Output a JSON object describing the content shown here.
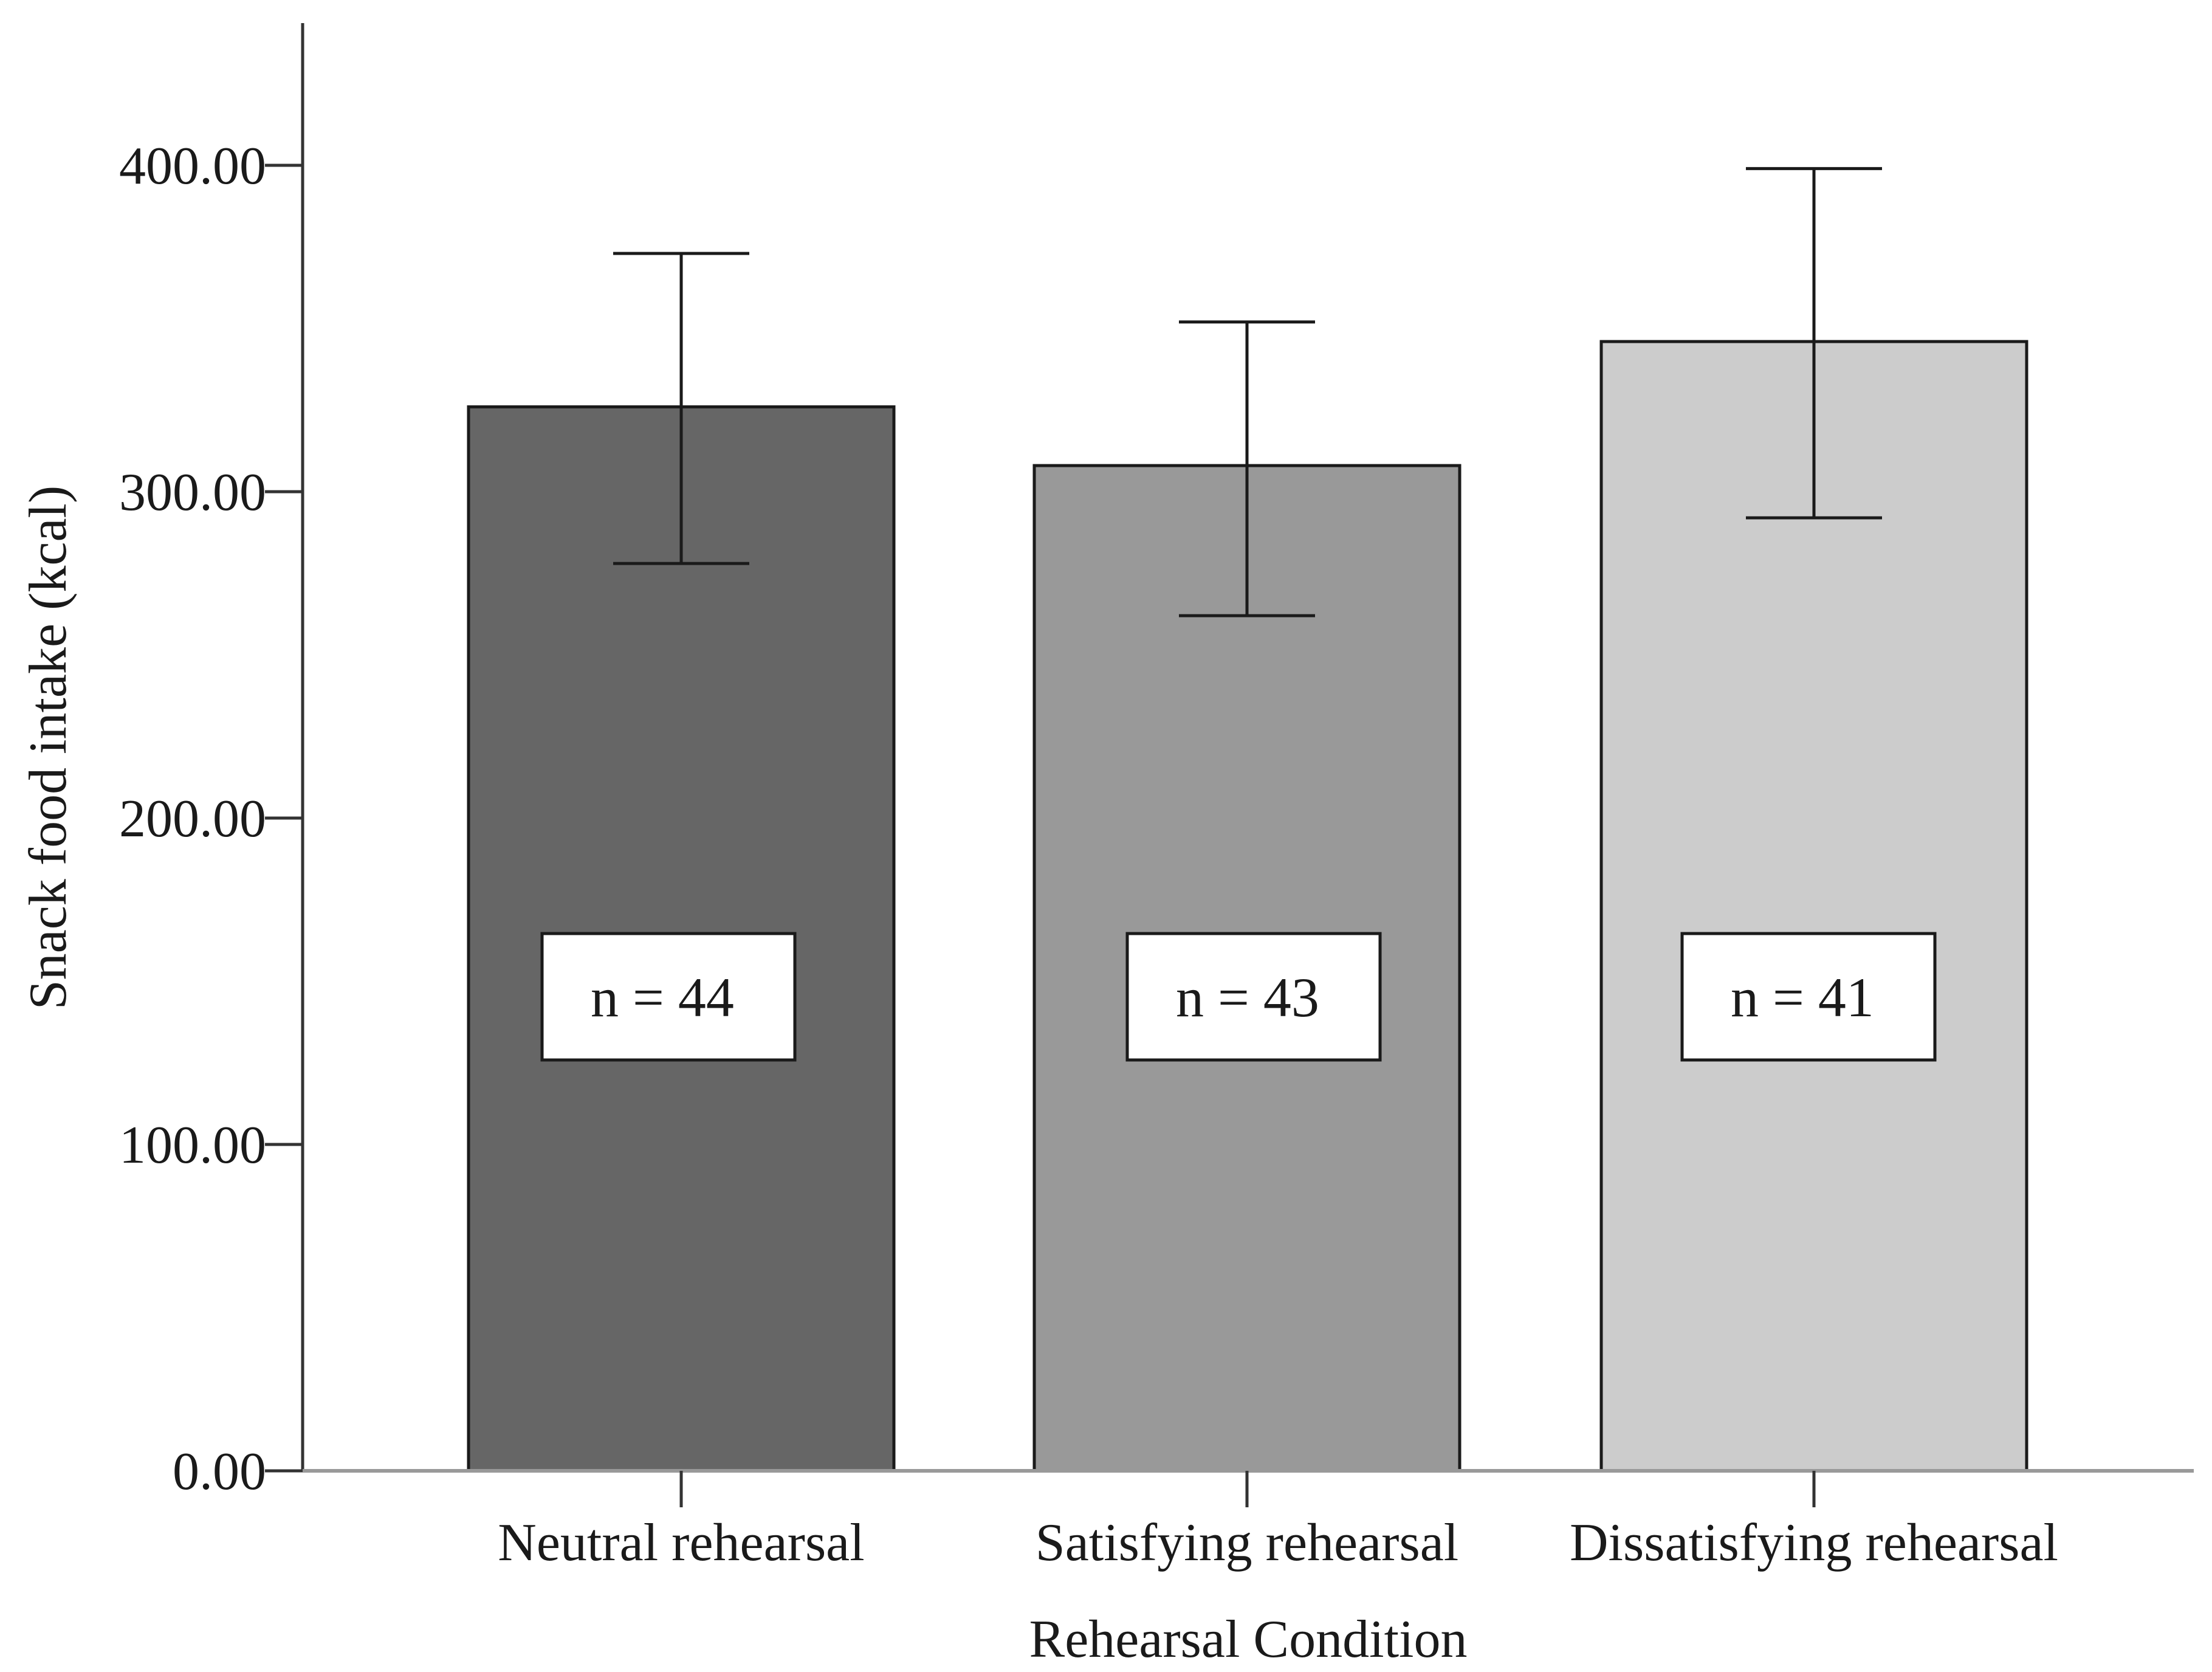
{
  "chart_data": {
    "type": "bar",
    "title": "",
    "xlabel": "Rehearsal Condition",
    "ylabel": "Snack food intake (kcal)",
    "ylim": [
      0,
      440
    ],
    "yticks": [
      0,
      100,
      200,
      300,
      400
    ],
    "ytick_labels": [
      "0.00",
      "100.00",
      "200.00",
      "300.00",
      "400.00"
    ],
    "grid": false,
    "categories": [
      "Neutral rehearsal",
      "Satisfying rehearsal",
      "Dissatisfying rehearsal"
    ],
    "values": [
      326,
      308,
      346
    ],
    "error_low": [
      278,
      262,
      292
    ],
    "error_high": [
      373,
      352,
      399
    ],
    "colors": [
      "#666666",
      "#999999",
      "#cccccc"
    ],
    "annotations": [
      "n = 44",
      "n = 43",
      "n = 41"
    ]
  }
}
